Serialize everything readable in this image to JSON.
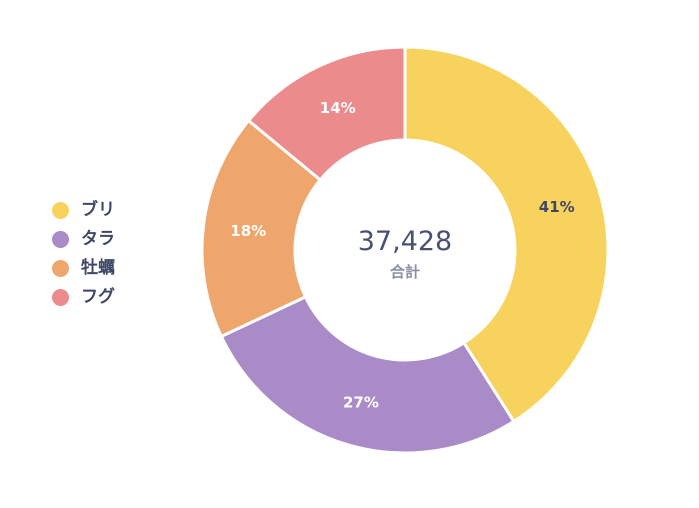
{
  "chart_data": {
    "type": "pie",
    "variant": "donut",
    "categories": [
      "ブリ",
      "タラ",
      "牡蠣",
      "フグ"
    ],
    "values": [
      41,
      27,
      18,
      14
    ],
    "value_labels": [
      "41%",
      "27%",
      "18%",
      "14%"
    ],
    "colors": [
      "#f7d35e",
      "#a98bc7",
      "#eea66c",
      "#ec8b8b"
    ],
    "label_colors": [
      "#3f4766",
      "#ffffff",
      "#ffffff",
      "#ffffff"
    ],
    "center": {
      "value": "37,428",
      "caption": "合計"
    },
    "legend": "left"
  }
}
